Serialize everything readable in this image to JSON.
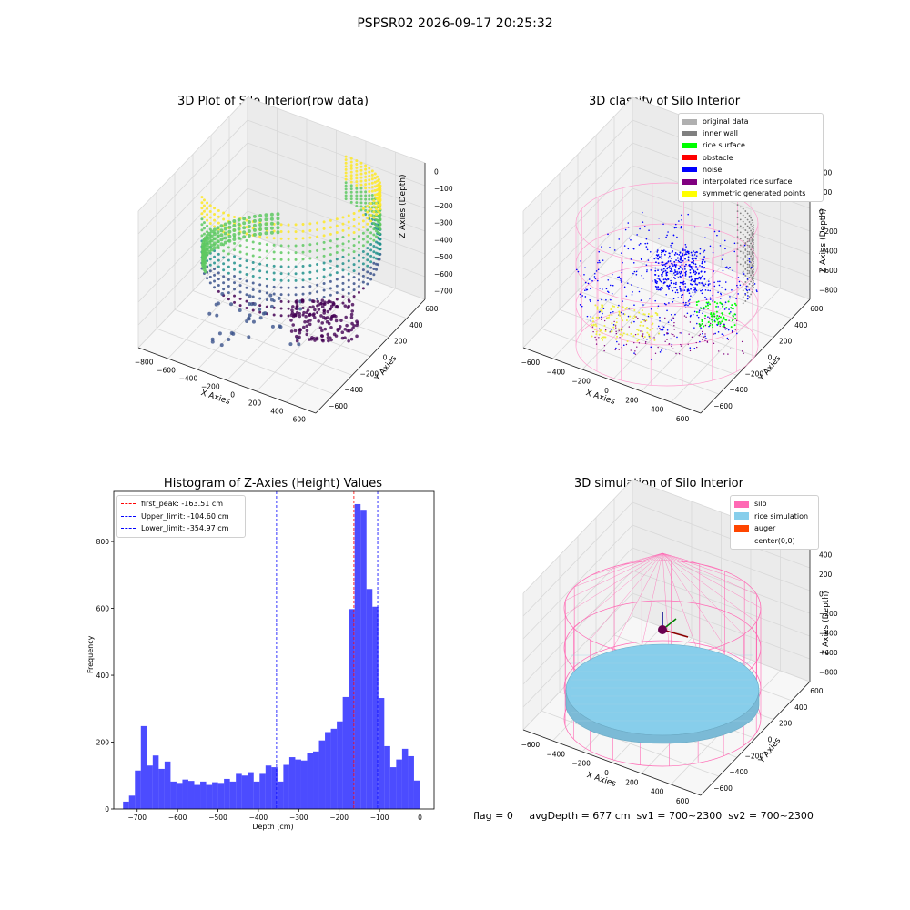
{
  "suptitle": "PSPSR02 2026-09-17 20:25:32",
  "footer": "flag = 0     avgDepth = 677 cm  sv1 = 700~2300  sv2 = 700~2300",
  "chart_data": [
    {
      "type": "scatter",
      "title": "3D Plot of Silo Interior(row data)",
      "xlabel": "X Axies",
      "ylabel": "Y Axies",
      "zlabel": "Z Axies (Depth)",
      "x_ticks": [
        "−800",
        "−600",
        "−400",
        "−200",
        "0",
        "200",
        "400",
        "600"
      ],
      "y_ticks": [
        "−600",
        "−400",
        "−200",
        "0",
        "200",
        "400",
        "600"
      ],
      "z_ticks": [
        "0",
        "−100",
        "−200",
        "−300",
        "−400",
        "−500",
        "−600",
        "−700"
      ],
      "colormap": [
        "#440154",
        "#3b528b",
        "#21918c",
        "#5ec962",
        "#fde725"
      ]
    },
    {
      "type": "scatter",
      "title": "3D classify of Silo Interior",
      "xlabel": "X Axies",
      "ylabel": "Y Axies",
      "zlabel": "Z Axies (Depth)",
      "x_ticks": [
        "−600",
        "−400",
        "−200",
        "0",
        "200",
        "400",
        "600"
      ],
      "y_ticks": [
        "−600",
        "−400",
        "−200",
        "0",
        "200",
        "400",
        "600"
      ],
      "z_ticks": [
        "400",
        "200",
        "0",
        "−200",
        "−400",
        "−600",
        "−800"
      ],
      "legend_position": "top-right",
      "legend": [
        {
          "label": "original data",
          "color": "#b0b0b0"
        },
        {
          "label": "inner wall",
          "color": "#808080"
        },
        {
          "label": "rice surface",
          "color": "#00ff00"
        },
        {
          "label": "obstacle",
          "color": "#ff0000"
        },
        {
          "label": "noise",
          "color": "#0000ff"
        },
        {
          "label": "interpolated rice surface",
          "color": "#800080"
        },
        {
          "label": "symmetric generated points",
          "color": "#ffff00"
        }
      ]
    },
    {
      "type": "bar",
      "title": "Histogram of Z-Axies (Height) Values",
      "xlabel": "Depth (cm)",
      "ylabel": "Frequency",
      "xlim": [
        -758,
        35
      ],
      "ylim": [
        0,
        950
      ],
      "x_ticks": [
        -700,
        -600,
        -500,
        -400,
        -300,
        -200,
        -100,
        0
      ],
      "y_ticks": [
        0,
        200,
        400,
        600,
        800
      ],
      "bin_start": -735,
      "bin_width": 14.7,
      "color": "#0000ff",
      "values": [
        22,
        40,
        115,
        248,
        130,
        160,
        120,
        142,
        82,
        78,
        88,
        84,
        72,
        82,
        72,
        80,
        78,
        90,
        82,
        105,
        100,
        110,
        82,
        105,
        130,
        125,
        82,
        132,
        155,
        148,
        145,
        168,
        172,
        205,
        230,
        240,
        262,
        335,
        598,
        912,
        895,
        658,
        605,
        332,
        188,
        125,
        148,
        180,
        158,
        85
      ],
      "vlines": [
        {
          "label": "first_peak: -163.51 cm",
          "value": -163.51,
          "color": "#ff0000"
        },
        {
          "label": "Upper_limit: -104.60 cm",
          "value": -104.6,
          "color": "#0000ff"
        },
        {
          "label": "Lower_limit: -354.97 cm",
          "value": -354.97,
          "color": "#0000ff"
        }
      ],
      "legend_position": "top-left"
    },
    {
      "type": "scatter",
      "title": "3D simulation of Silo Interior",
      "xlabel": "X Axies",
      "ylabel": "Y Axies",
      "zlabel": "Z Axies (Depth)",
      "x_ticks": [
        "−600",
        "−400",
        "−200",
        "0",
        "200",
        "400",
        "600"
      ],
      "y_ticks": [
        "−600",
        "−400",
        "−200",
        "0",
        "200",
        "400",
        "600"
      ],
      "z_ticks": [
        "400",
        "200",
        "0",
        "−200",
        "−400",
        "−600",
        "−800"
      ],
      "legend_position": "top-right",
      "legend": [
        {
          "label": "silo",
          "color": "#ff69b4"
        },
        {
          "label": "rice simulation",
          "color": "#87ceeb"
        },
        {
          "label": "auger",
          "color": "#ff4500"
        },
        {
          "label": "center(0,0)",
          "color": "#ffffff"
        }
      ]
    }
  ]
}
